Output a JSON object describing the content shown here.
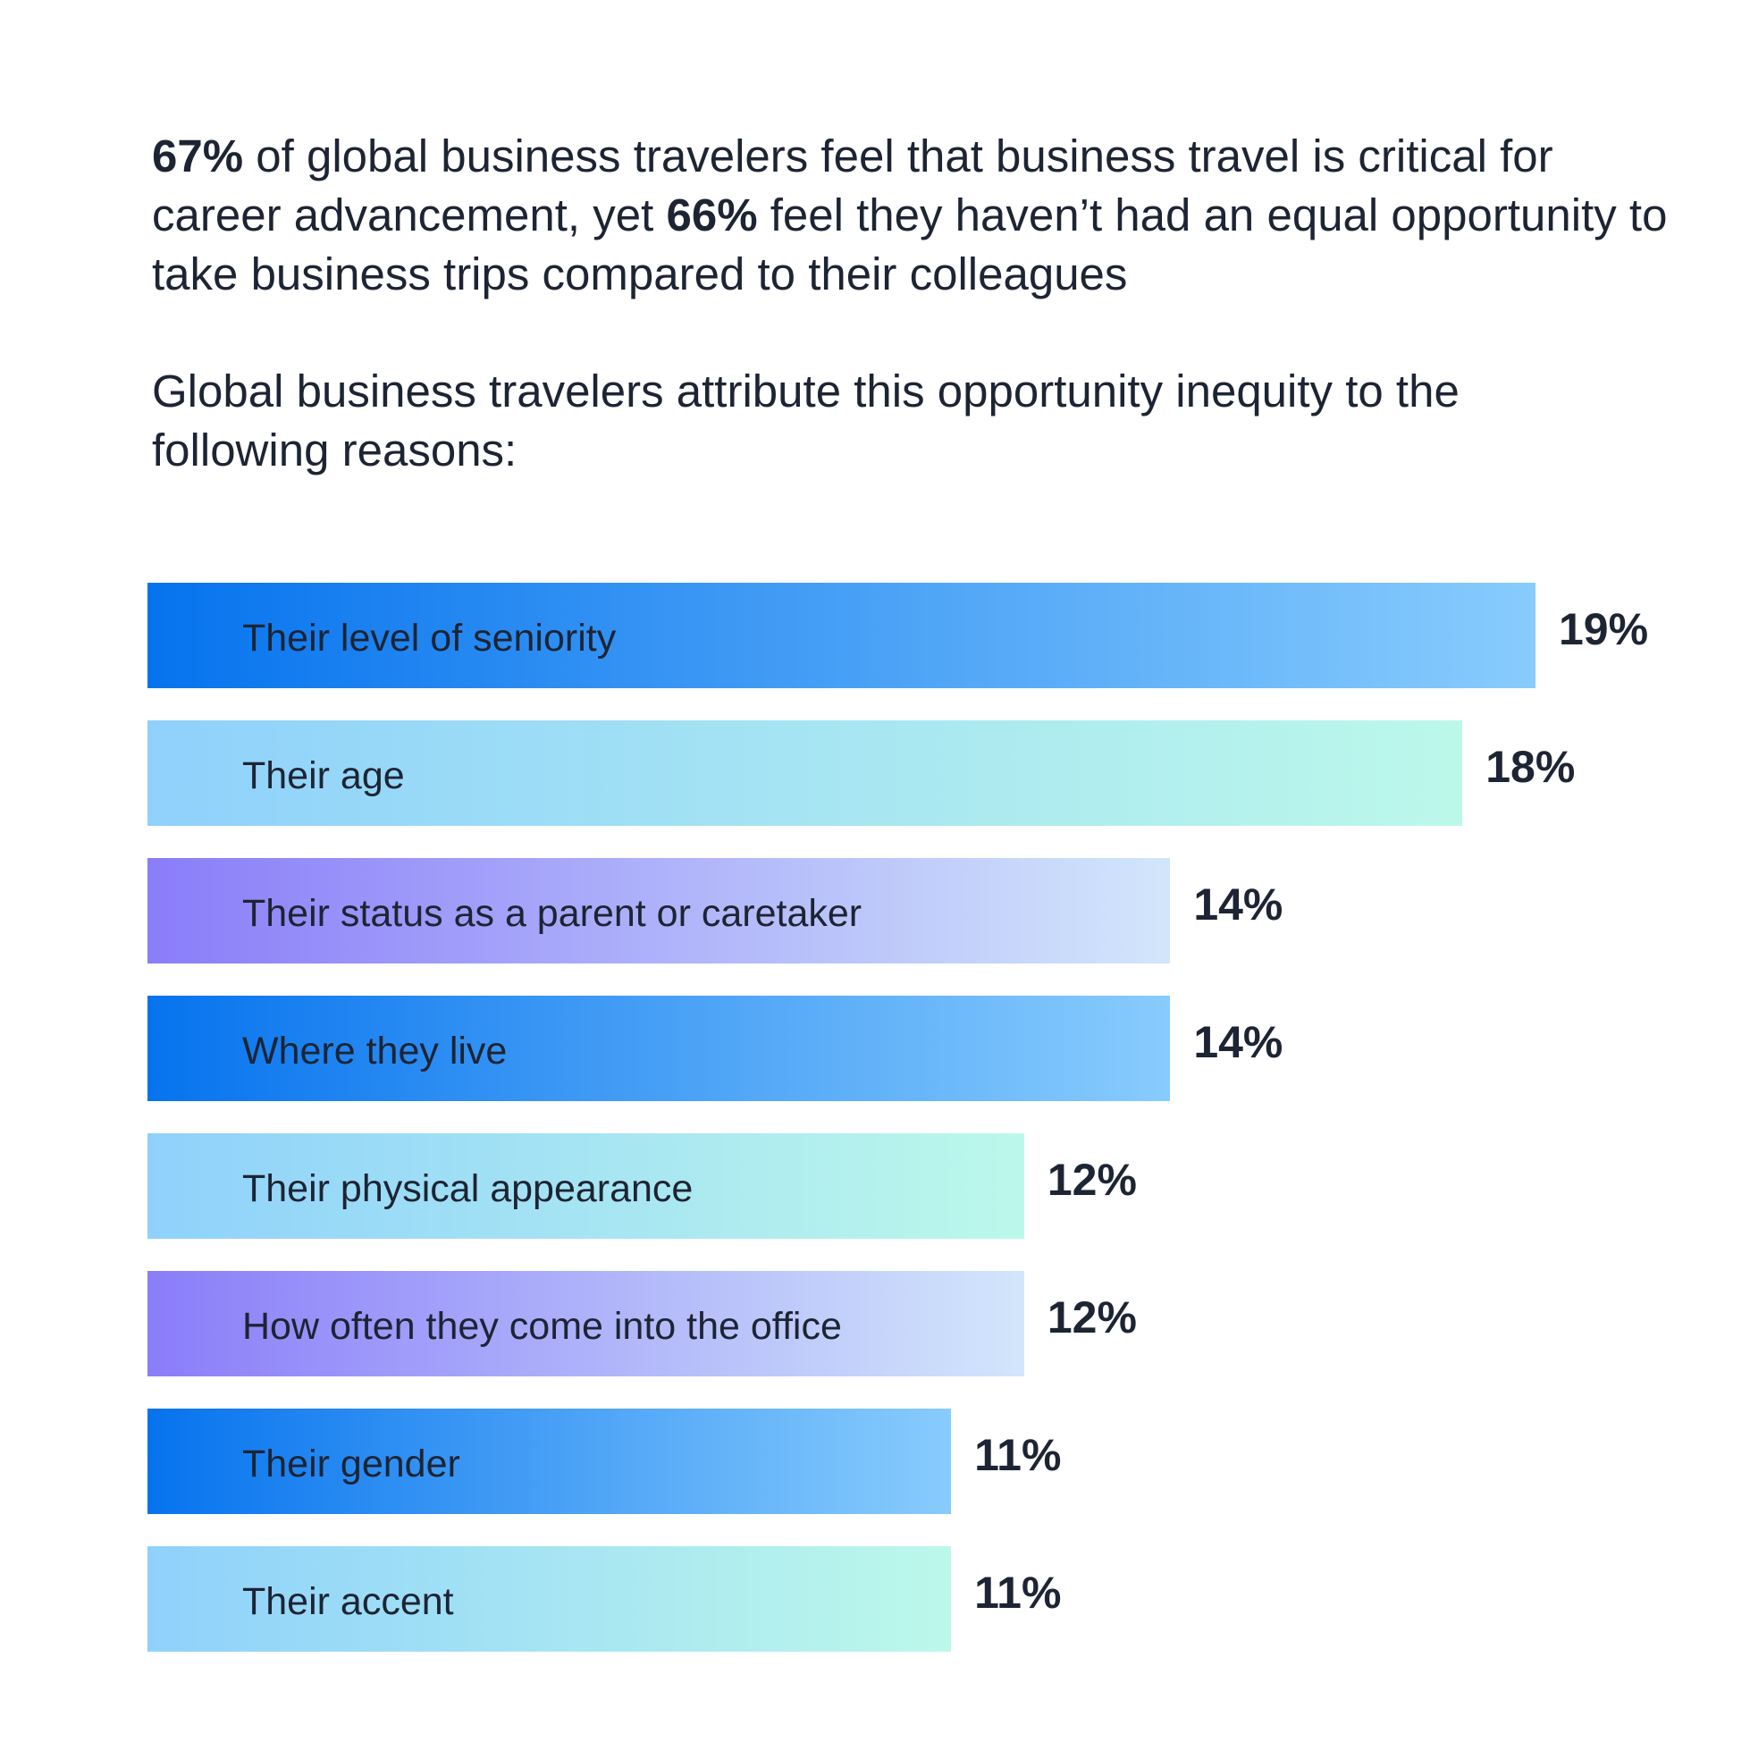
{
  "headline": {
    "stat1": "67%",
    "text1": " of global business travelers feel that business travel is critical for career advancement, yet ",
    "stat2": "66%",
    "text2": " feel they haven’t had an equal opportunity to take business trips compared to their colleagues"
  },
  "subhead": "Global business travelers attribute this opportunity inequity to the following reasons:",
  "colors": {
    "blue": [
      "#0673ee",
      "#88ccfd"
    ],
    "aqua": [
      "#8fd1fb",
      "#bcf8ea"
    ],
    "violet": [
      "#8a7df9",
      "#d2e6fb"
    ],
    "text": "#1d2433"
  },
  "chart_data": {
    "type": "bar",
    "orientation": "horizontal",
    "categories": [
      "Their level of seniority",
      "Their age",
      "Their status as a parent or caretaker",
      "Where they live",
      "Their physical appearance",
      "How often they come into the office",
      "Their gender",
      "Their accent"
    ],
    "values": [
      19,
      18,
      14,
      14,
      12,
      12,
      11,
      11
    ],
    "value_labels": [
      "19%",
      "18%",
      "14%",
      "14%",
      "12%",
      "12%",
      "11%",
      "11%"
    ],
    "bar_styles": [
      "blue",
      "aqua",
      "violet",
      "blue",
      "aqua",
      "violet",
      "blue",
      "aqua"
    ],
    "grid": false,
    "legend": "none"
  }
}
